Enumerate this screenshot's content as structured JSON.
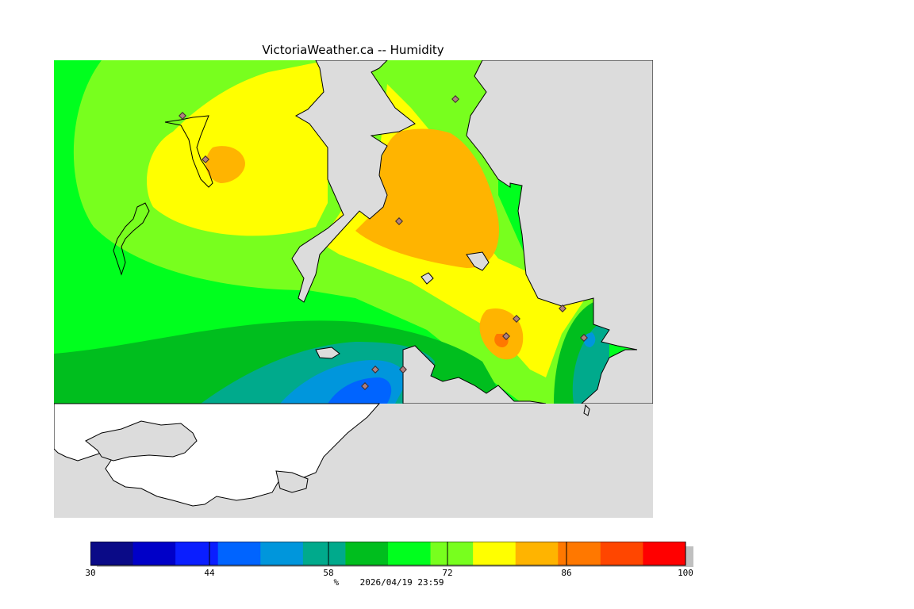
{
  "title": "VictoriaWeather.ca -- Humidity",
  "map": {
    "variable": "Humidity",
    "unit": "%",
    "background_color": "#dcdcdc",
    "land_outside_color": "#ffffff",
    "coastline_color": "#000000",
    "station_marker_color": "#5a4a4a"
  },
  "colorbar": {
    "min": 30,
    "max": 100,
    "colors": [
      "#0a0a87",
      "#0000c8",
      "#0a1eff",
      "#0064ff",
      "#0096dc",
      "#00aa8c",
      "#00be1e",
      "#00ff1e",
      "#78ff1e",
      "#ffff00",
      "#ffb400",
      "#ff7800",
      "#ff4600",
      "#ff0000"
    ],
    "tick_labels": [
      "30",
      "44",
      "58",
      "72",
      "86",
      "100"
    ]
  },
  "footer": {
    "unit": "%",
    "timestamp": "2026/04/19 23:59"
  }
}
